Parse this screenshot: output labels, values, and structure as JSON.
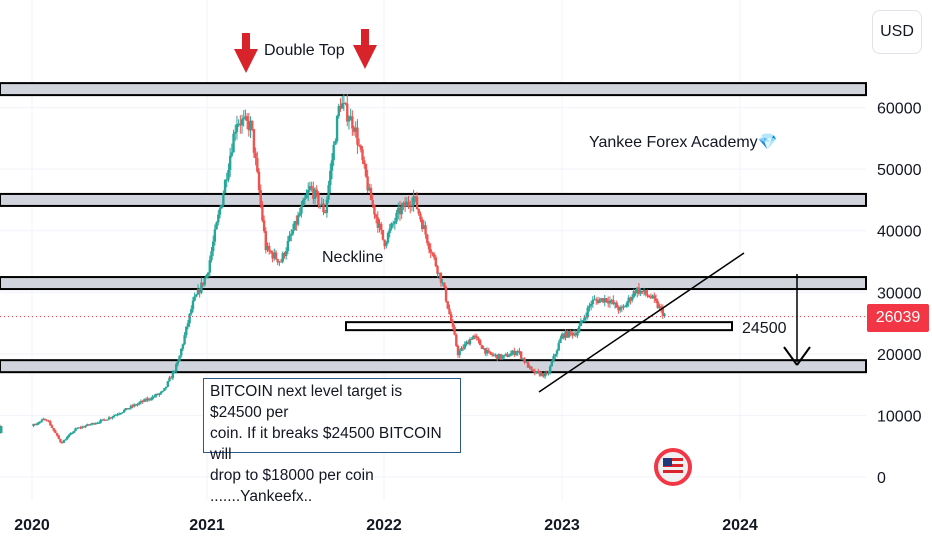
{
  "chart_data": {
    "type": "candlestick",
    "instrument": "BITCOIN",
    "currency": "USD",
    "ylim": [
      -1000,
      68000
    ],
    "y_ticks": [
      0,
      10000,
      20000,
      30000,
      40000,
      50000,
      60000
    ],
    "y_tick_labels": [
      "0",
      "10000",
      "20000",
      "30000",
      "40000",
      "50000",
      "60000"
    ],
    "x_ticks": [
      "2020",
      "2021",
      "2022",
      "2023",
      "2024"
    ],
    "last_price": 26039,
    "last_price_label": "26039",
    "trend_points": [
      [
        "2019-10",
        8300
      ],
      [
        "2019-12",
        7200
      ],
      [
        "2020-02",
        9500
      ],
      [
        "2020-03",
        5500
      ],
      [
        "2020-04",
        7800
      ],
      [
        "2020-06",
        9300
      ],
      [
        "2020-08",
        11600
      ],
      [
        "2020-10",
        13800
      ],
      [
        "2020-11",
        18500
      ],
      [
        "2020-12",
        28000
      ],
      [
        "2021-01",
        33000
      ],
      [
        "2021-02",
        45000
      ],
      [
        "2021-03",
        58000
      ],
      [
        "2021-04",
        57000
      ],
      [
        "2021-05",
        37000
      ],
      [
        "2021-06",
        35000
      ],
      [
        "2021-07",
        41000
      ],
      [
        "2021-08",
        47000
      ],
      [
        "2021-09",
        43000
      ],
      [
        "2021-10",
        61000
      ],
      [
        "2021-11",
        57000
      ],
      [
        "2021-12",
        46000
      ],
      [
        "2022-01",
        38000
      ],
      [
        "2022-02",
        43000
      ],
      [
        "2022-03",
        45500
      ],
      [
        "2022-04",
        38000
      ],
      [
        "2022-05",
        31000
      ],
      [
        "2022-06",
        20000
      ],
      [
        "2022-07",
        23000
      ],
      [
        "2022-08",
        20000
      ],
      [
        "2022-09",
        19400
      ],
      [
        "2022-10",
        20500
      ],
      [
        "2022-11",
        17000
      ],
      [
        "2022-12",
        16500
      ],
      [
        "2023-01",
        23000
      ],
      [
        "2023-02",
        23500
      ],
      [
        "2023-03",
        28500
      ],
      [
        "2023-04",
        29000
      ],
      [
        "2023-05",
        27000
      ],
      [
        "2023-06",
        30500
      ],
      [
        "2023-07",
        29200
      ],
      [
        "2023-08",
        26039
      ]
    ],
    "levels": [
      {
        "name": "resistance-top",
        "value": 63000
      },
      {
        "name": "resistance-mid",
        "value": 45000
      },
      {
        "name": "neckline",
        "value": 31500
      },
      {
        "name": "support",
        "value": 18000
      }
    ],
    "target_zone": {
      "value": 24500,
      "label": "24500"
    },
    "annotations": {
      "double_top": "Double Top",
      "neckline": "Neckline",
      "watermark": "Yankee Forex Academy💎"
    }
  },
  "ui": {
    "currency_button": "USD",
    "note_line1": "BITCOIN next level target is $24500 per",
    "note_line2": "coin.  If it breaks $24500 BITCOIN will",
    "note_line3": "drop to $18000 per coin .......Yankeefx.."
  },
  "colors": {
    "up": "#26a69a",
    "down": "#ef5350",
    "band_fill": "#d1d4dc",
    "arrow_red": "#d8232a",
    "price_line": "#f23645"
  }
}
